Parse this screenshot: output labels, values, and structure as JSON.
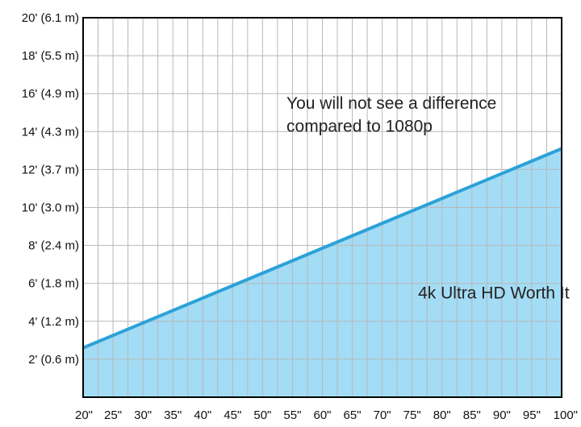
{
  "chart_data": {
    "type": "area",
    "x_tick_labels": [
      "20\"",
      "25\"",
      "30\"",
      "35\"",
      "40\"",
      "45\"",
      "50\"",
      "55\"",
      "60\"",
      "65\"",
      "70\"",
      "75\"",
      "80\"",
      "85\"",
      "90\"",
      "95\"",
      "100\""
    ],
    "x_ticks": [
      20,
      25,
      30,
      35,
      40,
      45,
      50,
      55,
      60,
      65,
      70,
      75,
      80,
      85,
      90,
      95,
      100
    ],
    "y_tick_labels": [
      "2' (0.6 m)",
      "4' (1.2 m)",
      "6' (1.8 m)",
      "8' (2.4 m)",
      "10' (3.0 m)",
      "12' (3.7 m)",
      "14' (4.3 m)",
      "16' (4.9 m)",
      "18' (5.5 m)",
      "20' (6.1 m)"
    ],
    "y_ticks": [
      2,
      4,
      6,
      8,
      10,
      12,
      14,
      16,
      18,
      20
    ],
    "xlim": [
      20,
      100
    ],
    "ylim": [
      0,
      20
    ],
    "x": [
      20,
      100
    ],
    "y": [
      2.6,
      13.1
    ],
    "grid": true,
    "annotations": [
      {
        "text": "You will not see a difference",
        "x": 54,
        "y": 15.2
      },
      {
        "text": "compared to 1080p",
        "x": 54,
        "y": 14.0
      },
      {
        "text": "4k Ultra HD Worth It",
        "x": 76,
        "y": 5.2
      }
    ],
    "colors": {
      "fill": "#a3dcf5",
      "line": "#2ba2d8",
      "grid": "#b8b8b8",
      "frame": "#000000"
    }
  }
}
